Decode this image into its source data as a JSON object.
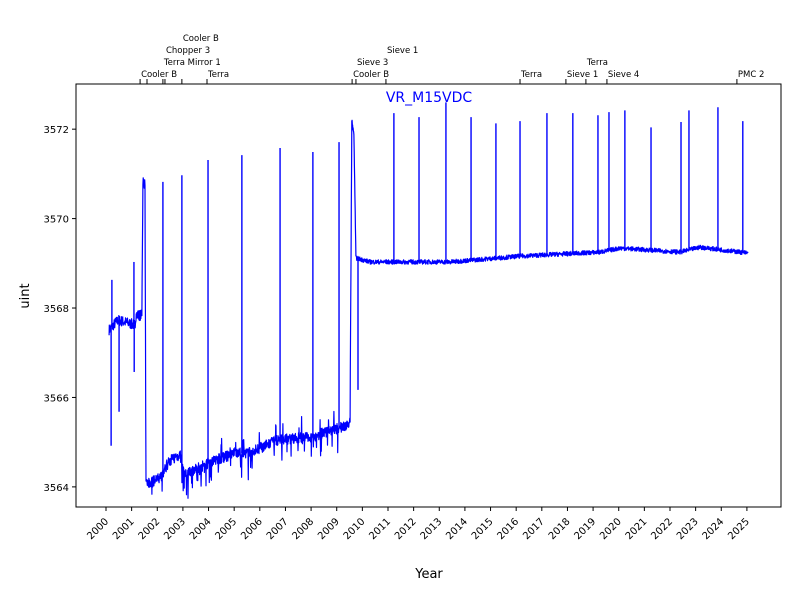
{
  "chart_data": {
    "type": "line",
    "title": "VR_M15VDC",
    "xlabel": "Year",
    "ylabel": "uint",
    "xlim": [
      1998.83,
      2026.33
    ],
    "ylim": [
      3563.55,
      3573.01
    ],
    "xticks": [
      "2000",
      "2001",
      "2002",
      "2003",
      "2004",
      "2005",
      "2006",
      "2007",
      "2008",
      "2009",
      "2010",
      "2011",
      "2012",
      "2013",
      "2014",
      "2015",
      "2016",
      "2017",
      "2018",
      "2019",
      "2020",
      "2021",
      "2022",
      "2023",
      "2024",
      "2025"
    ],
    "yticks": [
      "3564",
      "3566",
      "3568",
      "3570",
      "3572"
    ],
    "grid": false,
    "line_color": "#0000ff",
    "title_color": "#0000ff",
    "events": [
      {
        "x": 2001.33,
        "label": "Cooler B"
      },
      {
        "x": 2001.6,
        "label": ""
      },
      {
        "x": 2002.22,
        "label": "Terra Mirror 1"
      },
      {
        "x": 2002.3,
        "label": "Chopper 3"
      },
      {
        "x": 2002.96,
        "label": "Cooler B"
      },
      {
        "x": 2003.94,
        "label": "Terra"
      },
      {
        "x": 2009.6,
        "label": "Cooler B"
      },
      {
        "x": 2009.75,
        "label": "Sieve 3"
      },
      {
        "x": 2010.92,
        "label": "Sieve 1"
      },
      {
        "x": 2016.15,
        "label": "Terra"
      },
      {
        "x": 2017.94,
        "label": "Sieve 1"
      },
      {
        "x": 2018.72,
        "label": "Terra"
      },
      {
        "x": 2019.54,
        "label": "Sieve 4"
      },
      {
        "x": 2024.61,
        "label": "PMC 2"
      }
    ],
    "baseline": [
      [
        2000.12,
        3567.51
      ],
      [
        2000.47,
        3567.73
      ],
      [
        2001.13,
        3567.62
      ],
      [
        2001.17,
        3567.84
      ],
      [
        2001.4,
        3567.84
      ],
      [
        2001.44,
        3570.86
      ],
      [
        2001.52,
        3570.75
      ],
      [
        2001.56,
        3564.04
      ],
      [
        2002.11,
        3564.2
      ],
      [
        2002.5,
        3564.6
      ],
      [
        2002.89,
        3564.72
      ],
      [
        2003.04,
        3564.27
      ],
      [
        2003.86,
        3564.49
      ],
      [
        2004.06,
        3564.56
      ],
      [
        2005.23,
        3564.78
      ],
      [
        2005.42,
        3564.72
      ],
      [
        2006.71,
        3565.05
      ],
      [
        2008.03,
        3565.12
      ],
      [
        2009.13,
        3565.32
      ],
      [
        2009.52,
        3565.43
      ],
      [
        2009.59,
        3572.2
      ],
      [
        2009.67,
        3571.87
      ],
      [
        2009.75,
        3569.12
      ],
      [
        2010.3,
        3569.03
      ],
      [
        2013.42,
        3569.03
      ],
      [
        2016.15,
        3569.16
      ],
      [
        2019.27,
        3569.25
      ],
      [
        2020.05,
        3569.34
      ],
      [
        2022.39,
        3569.25
      ],
      [
        2023.17,
        3569.36
      ],
      [
        2025.04,
        3569.23
      ]
    ],
    "spikes": [
      [
        2000.2,
        3564.92
      ],
      [
        2000.23,
        3568.63
      ],
      [
        2000.51,
        3565.68
      ],
      [
        2001.09,
        3569.03
      ],
      [
        2001.1,
        3566.57
      ],
      [
        2002.22,
        3570.82
      ],
      [
        2002.96,
        3570.97
      ],
      [
        2003.98,
        3571.31
      ],
      [
        2005.3,
        3571.42
      ],
      [
        2006.79,
        3571.58
      ],
      [
        2008.07,
        3571.49
      ],
      [
        2009.09,
        3571.71
      ],
      [
        2009.83,
        3566.17
      ],
      [
        2011.23,
        3572.36
      ],
      [
        2012.21,
        3572.27
      ],
      [
        2013.26,
        3572.6
      ],
      [
        2014.24,
        3572.27
      ],
      [
        2015.21,
        3572.13
      ],
      [
        2016.15,
        3572.18
      ],
      [
        2017.2,
        3572.36
      ],
      [
        2018.21,
        3572.36
      ],
      [
        2019.19,
        3572.31
      ],
      [
        2019.62,
        3572.38
      ],
      [
        2020.24,
        3572.42
      ],
      [
        2021.26,
        3572.04
      ],
      [
        2022.43,
        3572.16
      ],
      [
        2022.74,
        3572.42
      ],
      [
        2023.87,
        3572.49
      ],
      [
        2024.84,
        3572.18
      ]
    ]
  }
}
